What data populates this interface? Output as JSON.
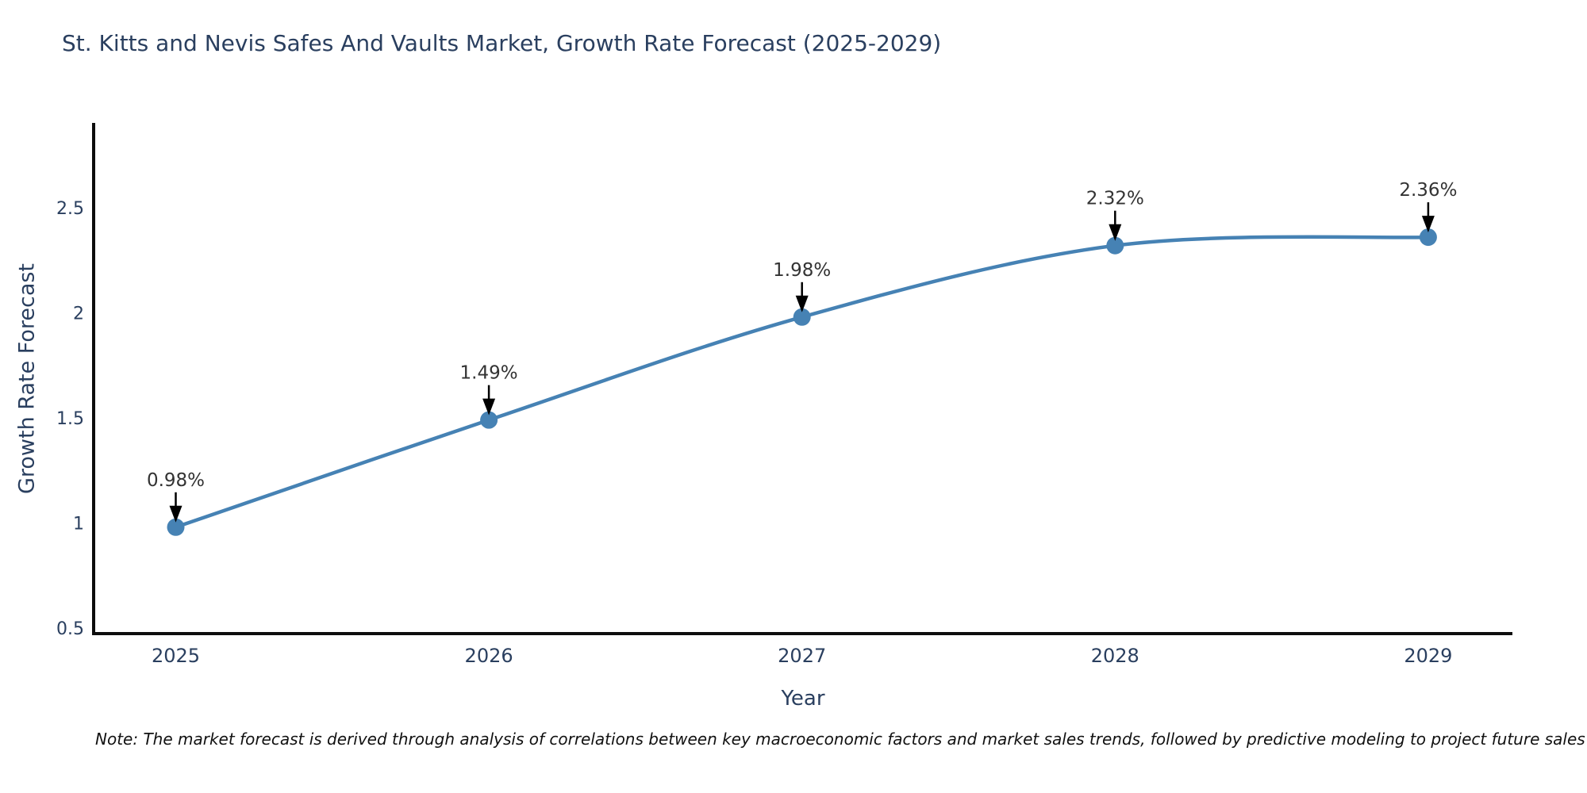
{
  "title": "St. Kitts and Nevis Safes And Vaults Market, Growth Rate Forecast (2025-2029)",
  "note": "Note: The market forecast is derived through analysis of correlations between key macroeconomic factors and market sales trends, followed by predictive modeling to project future sales",
  "chart_data": {
    "type": "line",
    "line_shape": "spline",
    "title": "St. Kitts and Nevis Safes And Vaults Market, Growth Rate Forecast (2025-2029)",
    "xlabel": "Year",
    "ylabel": "Growth Rate Forecast",
    "categories": [
      "2025",
      "2026",
      "2027",
      "2028",
      "2029"
    ],
    "values": [
      0.98,
      1.49,
      1.98,
      2.32,
      2.36
    ],
    "point_labels": [
      "0.98%",
      "1.49%",
      "1.98%",
      "2.32%",
      "2.36%"
    ],
    "yticks": [
      0.5,
      1,
      1.5,
      2,
      2.5
    ],
    "ylim": [
      0.5,
      2.93
    ],
    "grid": false,
    "legend": "none",
    "annotations": "arrow-down-to-each-point",
    "colors": {
      "line": "#4682b4",
      "marker": "#4682b4",
      "axis": "#0d0d0d",
      "tick_text": "#2a3f5f",
      "annotation_text": "#333333",
      "arrow": "#000000",
      "background": "#ffffff"
    }
  }
}
